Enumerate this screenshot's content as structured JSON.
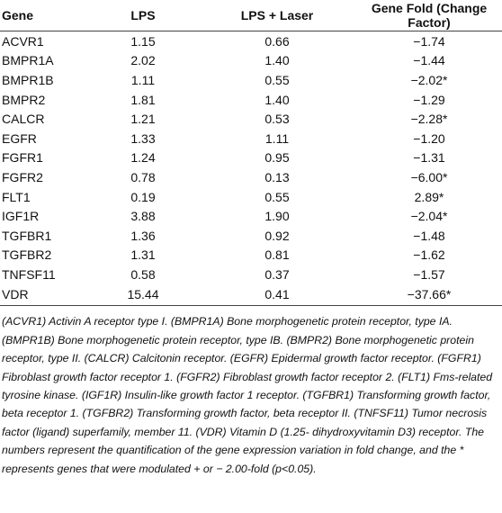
{
  "table": {
    "headers": [
      "Gene",
      "LPS",
      "LPS + Laser",
      "Gene Fold (Change Factor)"
    ],
    "rows": [
      [
        "ACVR1",
        "1.15",
        "0.66",
        "−1.74"
      ],
      [
        "BMPR1A",
        "2.02",
        "1.40",
        "−1.44"
      ],
      [
        "BMPR1B",
        "1.11",
        "0.55",
        "−2.02*"
      ],
      [
        "BMPR2",
        "1.81",
        "1.40",
        "−1.29"
      ],
      [
        "CALCR",
        "1.21",
        "0.53",
        "−2.28*"
      ],
      [
        "EGFR",
        "1.33",
        "1.11",
        "−1.20"
      ],
      [
        "FGFR1",
        "1.24",
        "0.95",
        "−1.31"
      ],
      [
        "FGFR2",
        "0.78",
        "0.13",
        "−6.00*"
      ],
      [
        "FLT1",
        "0.19",
        "0.55",
        "2.89*"
      ],
      [
        "IGF1R",
        "3.88",
        "1.90",
        "−2.04*"
      ],
      [
        "TGFBR1",
        "1.36",
        "0.92",
        "−1.48"
      ],
      [
        "TGFBR2",
        "1.31",
        "0.81",
        "−1.62"
      ],
      [
        "TNFSF11",
        "0.58",
        "0.37",
        "−1.57"
      ],
      [
        "VDR",
        "15.44",
        "0.41",
        "−37.66*"
      ]
    ]
  },
  "footnote": "(ACVR1) Activin A receptor type I. (BMPR1A) Bone morphogenetic protein receptor, type IA. (BMPR1B) Bone morphogenetic protein receptor, type IB. (BMPR2) Bone morphogenetic protein receptor, type II. (CALCR) Calcitonin receptor. (EGFR) Epidermal growth factor receptor. (FGFR1) Fibroblast growth factor receptor 1. (FGFR2) Fibroblast growth factor receptor 2. (FLT1) Fms-related tyrosine kinase. (IGF1R) Insulin-like growth factor 1 receptor. (TGFBR1) Transforming growth factor, beta receptor 1. (TGFBR2) Transforming growth factor, beta receptor II. (TNFSF11) Tumor necrosis factor (ligand) superfamily, member 11. (VDR) Vitamin D (1.25- dihydroxyvitamin D3) receptor. The numbers represent the quantification of the gene expression variation in fold change, and the * represents genes that were modulated + or − 2.00-fold (p<0.05)."
}
